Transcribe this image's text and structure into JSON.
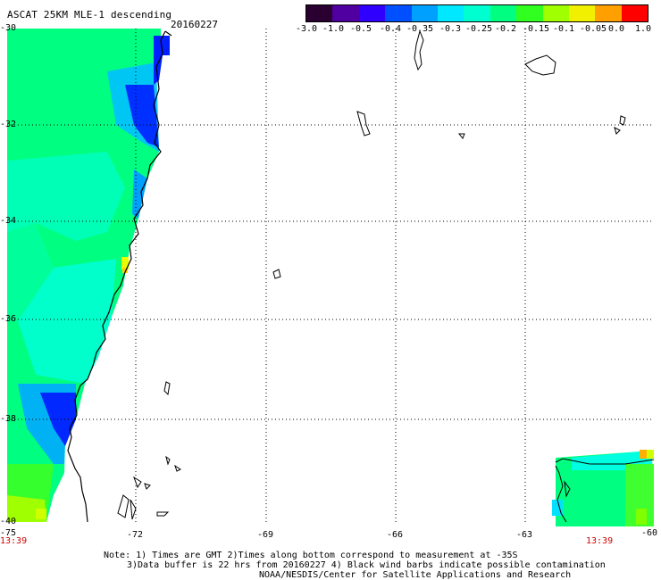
{
  "title": "ASCAT 25KM MLE-1 descending",
  "date": "20160227",
  "colorbar": {
    "ticks": [
      "-3.0",
      "-1.0",
      "-0.5",
      "-0.4",
      "-0.35",
      "-0.3",
      "-0.25",
      "-0.2",
      "-0.15",
      "-0.1",
      "-0.05",
      "0.0",
      "1.0"
    ],
    "colors": [
      "#000000",
      "#3a0070",
      "#6400c8",
      "#2a00ff",
      "#0050ff",
      "#00a0ff",
      "#00ffff",
      "#00ffb0",
      "#00ff40",
      "#60ff00",
      "#d0ff00",
      "#ffd000",
      "#ff7000",
      "#ff0000"
    ]
  },
  "axes": {
    "lat_labels": [
      "-30",
      "-32",
      "-34",
      "-36",
      "-38",
      "-40"
    ],
    "lon_labels": [
      "-75",
      "-72",
      "-69",
      "-66",
      "-63",
      "-60"
    ]
  },
  "times": {
    "left": "13:39",
    "right": "13:39"
  },
  "notes": {
    "line1": "Note: 1) Times are GMT 2)Times along bottom correspond to measurement at -35S",
    "line2": "3)Data buffer is 22 hrs from 20160227 4) Black wind barbs indicate possible contamination",
    "line3": "NOAA/NESDIS/Center for Satellite Applications and Research"
  }
}
